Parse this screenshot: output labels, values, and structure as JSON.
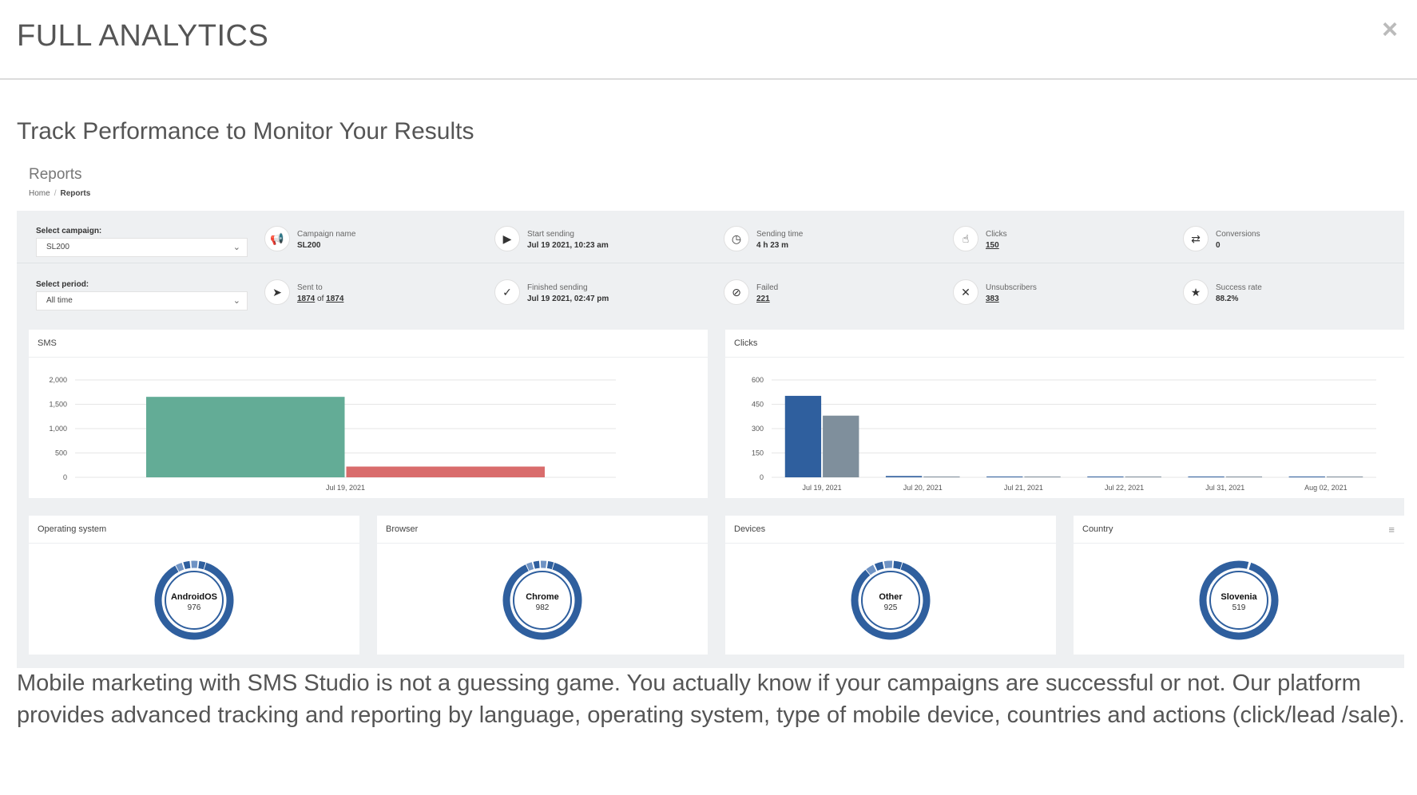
{
  "modal": {
    "title": "FULL ANALYTICS",
    "close_label": "×"
  },
  "headline": "Track Performance to Monitor Your Results",
  "reports": {
    "title": "Reports",
    "breadcrumb": {
      "home": "Home",
      "separator": "/",
      "current": "Reports"
    }
  },
  "filters": {
    "campaign_label": "Select campaign:",
    "campaign_value": "SL200",
    "period_label": "Select period:",
    "period_value": "All time"
  },
  "stats_row1": [
    {
      "icon": "megaphone-icon",
      "glyph": "📢",
      "label": "Campaign name",
      "value": "SL200"
    },
    {
      "icon": "play-icon",
      "glyph": "▶",
      "label": "Start sending",
      "value": "Jul 19 2021, 10:23 am"
    },
    {
      "icon": "clock-icon",
      "glyph": "◷",
      "label": "Sending time",
      "value": "4 h 23 m"
    },
    {
      "icon": "cursor-click-icon",
      "glyph": "☝",
      "label": "Clicks",
      "value": "150"
    },
    {
      "icon": "repeat-icon",
      "glyph": "⇄",
      "label": "Conversions",
      "value": "0"
    }
  ],
  "stats_row2": {
    "sent": {
      "icon": "paper-plane-icon",
      "glyph": "➤",
      "label": "Sent to",
      "value": "1874",
      "of": "of",
      "total": "1874"
    },
    "finished": {
      "icon": "check-circle-icon",
      "glyph": "✓",
      "label": "Finished sending",
      "value": "Jul 19 2021, 02:47 pm"
    },
    "failed": {
      "icon": "ban-icon",
      "glyph": "⊘",
      "label": "Failed",
      "value": "221"
    },
    "unsub": {
      "icon": "x-icon",
      "glyph": "✕",
      "label": "Unsubscribers",
      "value": "383"
    },
    "success": {
      "icon": "star-icon",
      "glyph": "★",
      "label": "Success rate",
      "value": "88.2%"
    }
  },
  "sms_card": {
    "title": "SMS"
  },
  "clicks_card": {
    "title": "Clicks"
  },
  "chart_data": [
    {
      "type": "bar",
      "title": "SMS",
      "categories": [
        "Jul 19, 2021"
      ],
      "series": [
        {
          "values": [
            1653
          ],
          "color": "#63ac96"
        },
        {
          "values": [
            221
          ],
          "color": "#d96c6c"
        }
      ],
      "yticks": [
        "0",
        "500",
        "1,000",
        "1,500",
        "2,000"
      ],
      "ylim": [
        0,
        2000
      ],
      "grid": true
    },
    {
      "type": "bar",
      "title": "Clicks",
      "categories": [
        "Jul 19, 2021",
        "Jul 20, 2021",
        "Jul 21, 2021",
        "Jul 22, 2021",
        "Jul 31, 2021",
        "Aug 02, 2021"
      ],
      "series": [
        {
          "values": [
            502,
            8,
            1,
            2,
            1,
            1
          ],
          "color": "#2f5f9e"
        },
        {
          "values": [
            380,
            3,
            1,
            1,
            1,
            1
          ],
          "color": "#7f8f9c"
        }
      ],
      "yticks": [
        "0",
        "150",
        "300",
        "450",
        "600"
      ],
      "ylim": [
        0,
        600
      ],
      "grid": true
    }
  ],
  "donuts": [
    {
      "card_title": "Operating system",
      "label": "AndroidOS",
      "value": "976",
      "share": 0.87
    },
    {
      "card_title": "Browser",
      "label": "Chrome",
      "value": "982",
      "share": 0.88
    },
    {
      "card_title": "Devices",
      "label": "Other",
      "value": "925",
      "share": 0.84
    },
    {
      "card_title": "Country",
      "label": "Slovenia",
      "value": "519",
      "share": 0.99
    }
  ],
  "colors": {
    "accent": "#2f5f9e",
    "accent_light": "#6f93c4",
    "sms_sent": "#63ac96",
    "sms_failed": "#d96c6c"
  },
  "description": "Mobile marketing with SMS Studio is not a guessing game. You actually know if your campaigns are successful or not. Our platform provides advanced tracking and reporting by language, operating system, type of mobile device, countries and actions (click/lead /sale)."
}
